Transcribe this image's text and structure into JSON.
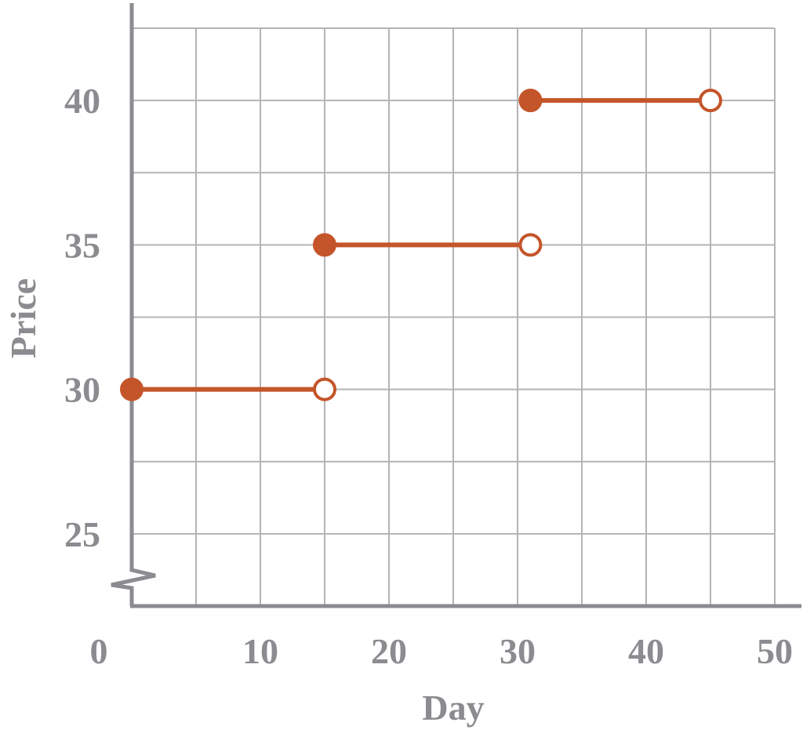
{
  "chart_data": {
    "type": "line",
    "title": "",
    "xlabel": "Day",
    "ylabel": "Price",
    "xlim": [
      0,
      50
    ],
    "ylim": [
      22.5,
      42.5
    ],
    "y_axis_break": true,
    "grid": true,
    "x_ticks": [
      "0",
      "10",
      "20",
      "30",
      "40",
      "50"
    ],
    "y_ticks": [
      "25",
      "30",
      "35",
      "40"
    ],
    "colors": {
      "series": "#c4552a",
      "axis": "#8b8b90",
      "grid": "#b4b4b6"
    },
    "series": [
      {
        "type": "step",
        "segments": [
          {
            "x_start": 0,
            "x_end": 15,
            "y": 30,
            "start_closed": true,
            "end_closed": false
          },
          {
            "x_start": 15,
            "x_end": 31,
            "y": 35,
            "start_closed": true,
            "end_closed": false
          },
          {
            "x_start": 31,
            "x_end": 45,
            "y": 40,
            "start_closed": true,
            "end_closed": false
          }
        ]
      }
    ]
  }
}
